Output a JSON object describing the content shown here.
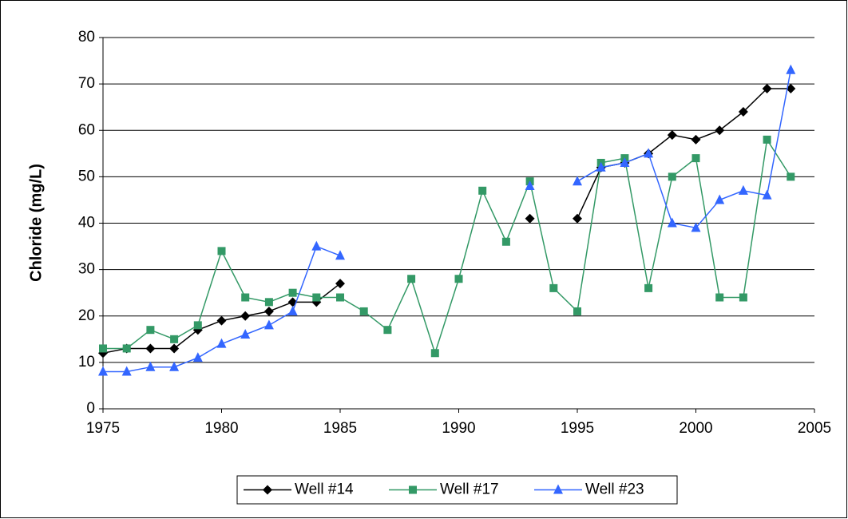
{
  "chart_data": {
    "type": "line",
    "y_label": "Chloride (mg/L)",
    "x": [
      1975,
      1976,
      1977,
      1978,
      1979,
      1980,
      1981,
      1982,
      1983,
      1984,
      1985,
      1986,
      1987,
      1988,
      1989,
      1990,
      1991,
      1992,
      1993,
      1994,
      1995,
      1996,
      1997,
      1998,
      1999,
      2000,
      2001,
      2002,
      2003,
      2004
    ],
    "series": [
      {
        "name": "Well #14",
        "color": "#000000",
        "marker": "diamond",
        "values": [
          12,
          13,
          13,
          13,
          17,
          19,
          20,
          21,
          23,
          23,
          27,
          null,
          null,
          null,
          null,
          null,
          null,
          null,
          41,
          null,
          41,
          52,
          53,
          55,
          59,
          58,
          60,
          64,
          69,
          69
        ]
      },
      {
        "name": "Well #17",
        "color": "#339966",
        "marker": "square",
        "values": [
          13,
          13,
          17,
          15,
          18,
          34,
          24,
          23,
          25,
          24,
          24,
          21,
          17,
          28,
          12,
          28,
          47,
          36,
          49,
          26,
          21,
          53,
          54,
          26,
          50,
          54,
          24,
          24,
          58,
          50
        ]
      },
      {
        "name": "Well #23",
        "color": "#3366ff",
        "marker": "triangle",
        "values": [
          8,
          8,
          9,
          9,
          11,
          14,
          16,
          18,
          21,
          35,
          33,
          null,
          null,
          null,
          null,
          null,
          null,
          null,
          48,
          null,
          49,
          52,
          53,
          55,
          40,
          39,
          45,
          47,
          46,
          73
        ]
      }
    ],
    "xlim": [
      1975,
      2005
    ],
    "xticks": [
      1975,
      1980,
      1985,
      1990,
      1995,
      2000,
      2005
    ],
    "ylim": [
      0,
      80
    ],
    "yticks": [
      0,
      10,
      20,
      30,
      40,
      50,
      60,
      70,
      80
    ],
    "grid": true,
    "legend": "bottom"
  }
}
